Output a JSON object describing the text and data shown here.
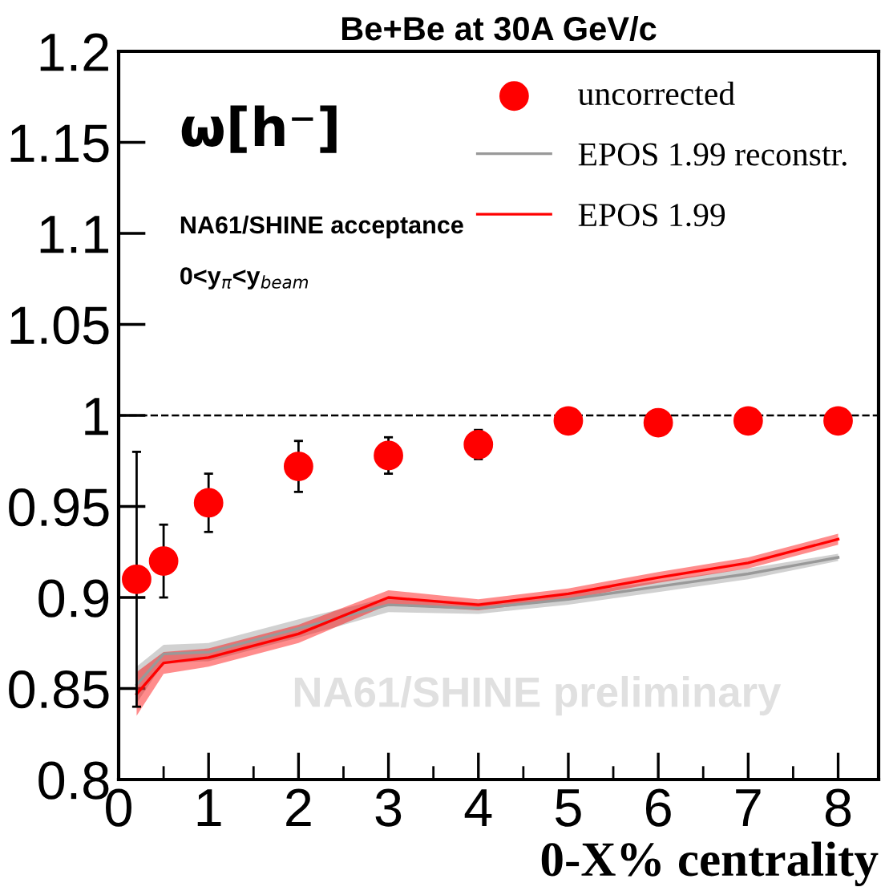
{
  "chart_data": {
    "type": "scatter",
    "title": "Be+Be at 30A GeV/c",
    "xlabel": "0-X% centrality",
    "annotations": [
      "ω[h⁻]",
      "NA61/SHINE acceptance",
      "0<y$_{π}$<y$_{beam}$",
      "NA61/SHINE preliminary"
    ],
    "series": [
      {
        "name": "uncorrected",
        "color": "#ff0000",
        "marker": "circle",
        "x": [
          0.2,
          0.5,
          1,
          2,
          3,
          4,
          5,
          6,
          7,
          8
        ],
        "values": [
          0.91,
          0.92,
          0.952,
          0.972,
          0.978,
          0.984,
          0.997,
          0.996,
          0.997,
          0.997
        ],
        "errors": [
          0.07,
          0.02,
          0.016,
          0.014,
          0.01,
          0.008,
          null,
          null,
          null,
          null
        ]
      },
      {
        "name": "EPOS 1.99 reconstr.",
        "type": "line",
        "color": "#999999",
        "x": [
          0.2,
          0.5,
          1,
          2,
          3,
          4,
          5,
          6,
          7,
          8
        ],
        "values": [
          0.852,
          0.869,
          0.87,
          0.883,
          0.896,
          0.894,
          0.899,
          0.906,
          0.913,
          0.922
        ],
        "lower": [
          0.842,
          0.864,
          0.865,
          0.878,
          0.892,
          0.891,
          0.896,
          0.903,
          0.91,
          0.92
        ],
        "upper": [
          0.862,
          0.874,
          0.875,
          0.888,
          0.9,
          0.897,
          0.902,
          0.909,
          0.916,
          0.924
        ]
      },
      {
        "name": "EPOS 1.99",
        "type": "line",
        "color": "#ff0000",
        "x": [
          0.2,
          0.5,
          1,
          2,
          3,
          4,
          5,
          6,
          7,
          8
        ],
        "values": [
          0.847,
          0.864,
          0.867,
          0.88,
          0.9,
          0.896,
          0.902,
          0.911,
          0.919,
          0.932
        ],
        "lower": [
          0.835,
          0.858,
          0.862,
          0.875,
          0.896,
          0.893,
          0.899,
          0.908,
          0.916,
          0.929
        ],
        "upper": [
          0.859,
          0.87,
          0.872,
          0.885,
          0.904,
          0.899,
          0.905,
          0.914,
          0.922,
          0.935
        ]
      }
    ],
    "xlim": [
      0,
      8.45
    ],
    "xticks": [
      0,
      1,
      2,
      3,
      4,
      5,
      6,
      7,
      8
    ],
    "ylim": [
      0.8,
      1.2
    ],
    "yticks": [
      0.8,
      0.85,
      0.9,
      0.95,
      1,
      1.05,
      1.1,
      1.15,
      1.2
    ],
    "ref_lines": [
      {
        "axis": "y",
        "value": 1,
        "color": "#000000",
        "line_style": "dashed"
      }
    ],
    "grid": false,
    "legend": "top right"
  }
}
